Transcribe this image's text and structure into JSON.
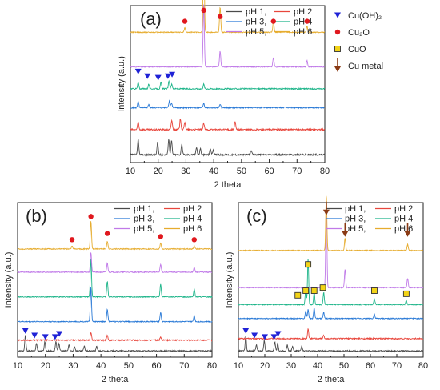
{
  "figure": {
    "symbol_legend": [
      {
        "key": "cuoh2",
        "label": "Cu(OH)₂",
        "marker": "triangle-down",
        "color": "#1f22d6"
      },
      {
        "key": "cu2o",
        "label": "Cu₂O",
        "marker": "circle",
        "color": "#e0181e"
      },
      {
        "key": "cuo",
        "label": "CuO",
        "marker": "square",
        "color": "#f2d318"
      },
      {
        "key": "cu_metal",
        "label": "Cu metal",
        "marker": "arrow-down",
        "color": "#c41e1e"
      }
    ]
  },
  "chart_data": [
    {
      "type": "line",
      "panel_label": "(a)",
      "title": "",
      "xlabel": "2 theta",
      "ylabel": "Intensity (a.u.)",
      "xlim": [
        10,
        80
      ],
      "xticks": [
        10,
        20,
        30,
        40,
        50,
        60,
        70,
        80
      ],
      "legend_position": "top-center",
      "series": [
        {
          "name": "pH 1,",
          "color": "#4a4a4a",
          "baseline": 0.05,
          "peaks": [
            [
              12.8,
              0.1
            ],
            [
              19.8,
              0.08
            ],
            [
              23.8,
              0.1
            ],
            [
              24.8,
              0.09
            ],
            [
              28.5,
              0.07
            ],
            [
              33.8,
              0.05
            ],
            [
              35.2,
              0.04
            ],
            [
              38.8,
              0.04
            ],
            [
              39.8,
              0.03
            ],
            [
              53.5,
              0.03
            ]
          ],
          "noise": 0.005
        },
        {
          "name": "pH 2",
          "color": "#e8463c",
          "baseline": 0.21,
          "peaks": [
            [
              12.8,
              0.05
            ],
            [
              24.9,
              0.06
            ],
            [
              28.0,
              0.07
            ],
            [
              29.6,
              0.05
            ],
            [
              36.4,
              0.04
            ],
            [
              47.7,
              0.05
            ]
          ],
          "noise": 0.005
        },
        {
          "name": "pH 3,",
          "color": "#2979d6",
          "baseline": 0.35,
          "peaks": [
            [
              12.8,
              0.04
            ],
            [
              16.6,
              0.02
            ],
            [
              24.0,
              0.04
            ],
            [
              24.8,
              0.03
            ],
            [
              36.4,
              0.03
            ],
            [
              42.3,
              0.02
            ]
          ],
          "noise": 0.004
        },
        {
          "name": "pH 4",
          "color": "#1fb58a",
          "baseline": 0.47,
          "peaks": [
            [
              12.8,
              0.04
            ],
            [
              16.6,
              0.03
            ],
            [
              21.0,
              0.04
            ],
            [
              23.9,
              0.05
            ],
            [
              24.9,
              0.03
            ],
            [
              36.4,
              0.03
            ]
          ],
          "noise": 0.004
        },
        {
          "name": "pH 5,",
          "color": "#c07ae8",
          "baseline": 0.61,
          "peaks": [
            [
              36.4,
              0.4
            ],
            [
              42.3,
              0.1
            ],
            [
              61.5,
              0.06
            ],
            [
              73.6,
              0.04
            ]
          ],
          "noise": 0.003
        },
        {
          "name": "pH 6",
          "color": "#e6ac2e",
          "baseline": 0.83,
          "peaks": [
            [
              29.6,
              0.03
            ],
            [
              36.4,
              0.6
            ],
            [
              42.3,
              0.16
            ],
            [
              61.5,
              0.07
            ],
            [
              73.6,
              0.04
            ]
          ],
          "noise": 0.003
        }
      ],
      "markers": [
        {
          "type": "cu2o",
          "points": [
            [
              29.6,
              0.9
            ],
            [
              36.4,
              0.97
            ],
            [
              42.3,
              0.93
            ],
            [
              61.5,
              0.9
            ],
            [
              73.6,
              0.9
            ]
          ]
        },
        {
          "type": "cuoh2",
          "points": [
            [
              12.8,
              0.58
            ],
            [
              16.1,
              0.55
            ],
            [
              20.0,
              0.54
            ],
            [
              23.5,
              0.55
            ],
            [
              25.0,
              0.56
            ]
          ]
        }
      ]
    },
    {
      "type": "line",
      "panel_label": "(b)",
      "title": "",
      "xlabel": "2 theta",
      "ylabel": "Intensity (a.u.)",
      "xlim": [
        10,
        80
      ],
      "xticks": [
        10,
        20,
        30,
        40,
        50,
        60,
        70,
        80
      ],
      "legend_position": "top-right",
      "series": [
        {
          "name": "pH 1,",
          "color": "#4a4a4a",
          "baseline": 0.04,
          "peaks": [
            [
              12.8,
              0.1
            ],
            [
              16.8,
              0.05
            ],
            [
              19.8,
              0.06
            ],
            [
              23.8,
              0.06
            ],
            [
              24.9,
              0.05
            ],
            [
              28.5,
              0.04
            ],
            [
              30.5,
              0.03
            ],
            [
              34.0,
              0.03
            ],
            [
              38.5,
              0.03
            ]
          ],
          "noise": 0.004
        },
        {
          "name": "pH 2",
          "color": "#e8463c",
          "baseline": 0.11,
          "peaks": [
            [
              36.4,
              0.05
            ],
            [
              42.3,
              0.03
            ],
            [
              61.5,
              0.02
            ]
          ],
          "noise": 0.004
        },
        {
          "name": "pH 3,",
          "color": "#2979d6",
          "baseline": 0.23,
          "peaks": [
            [
              36.4,
              0.22
            ],
            [
              42.3,
              0.08
            ],
            [
              61.5,
              0.06
            ],
            [
              73.6,
              0.04
            ]
          ],
          "noise": 0.003
        },
        {
          "name": "pH 4",
          "color": "#1fb58a",
          "baseline": 0.39,
          "peaks": [
            [
              36.4,
              0.25
            ],
            [
              42.3,
              0.1
            ],
            [
              61.5,
              0.08
            ],
            [
              73.6,
              0.05
            ]
          ],
          "noise": 0.003
        },
        {
          "name": "pH 5,",
          "color": "#c07ae8",
          "baseline": 0.55,
          "peaks": [
            [
              36.4,
              0.13
            ],
            [
              42.3,
              0.06
            ],
            [
              61.5,
              0.05
            ],
            [
              73.6,
              0.03
            ]
          ],
          "noise": 0.003
        },
        {
          "name": "pH 6",
          "color": "#e6ac2e",
          "baseline": 0.7,
          "peaks": [
            [
              29.6,
              0.02
            ],
            [
              36.4,
              0.18
            ],
            [
              42.3,
              0.05
            ],
            [
              61.5,
              0.04
            ],
            [
              73.6,
              0.02
            ]
          ],
          "noise": 0.003
        }
      ],
      "markers": [
        {
          "type": "cu2o",
          "points": [
            [
              29.6,
              0.76
            ],
            [
              36.4,
              0.91
            ],
            [
              42.3,
              0.8
            ],
            [
              61.5,
              0.78
            ],
            [
              73.6,
              0.76
            ]
          ]
        },
        {
          "type": "cuoh2",
          "points": [
            [
              12.8,
              0.17
            ],
            [
              16.1,
              0.14
            ],
            [
              20.0,
              0.13
            ],
            [
              23.5,
              0.13
            ],
            [
              25.0,
              0.15
            ]
          ]
        }
      ]
    },
    {
      "type": "line",
      "panel_label": "(c)",
      "title": "",
      "xlabel": "2 theta",
      "ylabel": "Intensity (a.u.)",
      "xlim": [
        10,
        80
      ],
      "xticks": [
        10,
        20,
        30,
        40,
        50,
        60,
        70,
        80
      ],
      "legend_position": "top-right",
      "series": [
        {
          "name": "pH 1,",
          "color": "#4a4a4a",
          "baseline": 0.04,
          "peaks": [
            [
              12.8,
              0.1
            ],
            [
              16.8,
              0.04
            ],
            [
              19.8,
              0.07
            ],
            [
              23.8,
              0.06
            ],
            [
              24.9,
              0.05
            ],
            [
              28.5,
              0.04
            ],
            [
              30.5,
              0.03
            ],
            [
              34.0,
              0.03
            ]
          ],
          "noise": 0.004
        },
        {
          "name": "pH 2",
          "color": "#e8463c",
          "baseline": 0.12,
          "peaks": [
            [
              36.4,
              0.06
            ],
            [
              42.3,
              0.02
            ]
          ],
          "noise": 0.004
        },
        {
          "name": "pH 3,",
          "color": "#2979d6",
          "baseline": 0.25,
          "peaks": [
            [
              35.5,
              0.05
            ],
            [
              36.4,
              0.06
            ],
            [
              38.7,
              0.07
            ],
            [
              42.3,
              0.04
            ],
            [
              61.5,
              0.03
            ]
          ],
          "noise": 0.003
        },
        {
          "name": "pH 4",
          "color": "#1fb58a",
          "baseline": 0.34,
          "peaks": [
            [
              35.5,
              0.1
            ],
            [
              36.4,
              0.3
            ],
            [
              38.7,
              0.08
            ],
            [
              42.3,
              0.08
            ],
            [
              61.5,
              0.04
            ],
            [
              73.6,
              0.03
            ]
          ],
          "noise": 0.003
        },
        {
          "name": "pH 5,",
          "color": "#c07ae8",
          "baseline": 0.45,
          "peaks": [
            [
              43.3,
              0.58
            ],
            [
              50.4,
              0.12
            ],
            [
              74.1,
              0.06
            ]
          ],
          "noise": 0.003
        },
        {
          "name": "pH 6",
          "color": "#e6ac2e",
          "baseline": 0.69,
          "peaks": [
            [
              43.3,
              0.36
            ],
            [
              50.4,
              0.08
            ],
            [
              74.1,
              0.04
            ]
          ],
          "noise": 0.003
        }
      ],
      "markers": [
        {
          "type": "cu_metal",
          "points": [
            [
              43.3,
              0.96
            ],
            [
              50.4,
              0.82
            ],
            [
              74.1,
              0.82
            ]
          ]
        },
        {
          "type": "cuo",
          "points": [
            [
              32.5,
              0.4
            ],
            [
              35.5,
              0.43
            ],
            [
              36.4,
              0.6
            ],
            [
              38.7,
              0.43
            ],
            [
              42.0,
              0.45
            ],
            [
              61.5,
              0.43
            ],
            [
              73.6,
              0.41
            ]
          ]
        },
        {
          "type": "cuoh2",
          "points": [
            [
              12.8,
              0.17
            ],
            [
              16.1,
              0.14
            ],
            [
              20.0,
              0.13
            ],
            [
              23.5,
              0.13
            ],
            [
              25.0,
              0.15
            ]
          ]
        }
      ]
    }
  ]
}
